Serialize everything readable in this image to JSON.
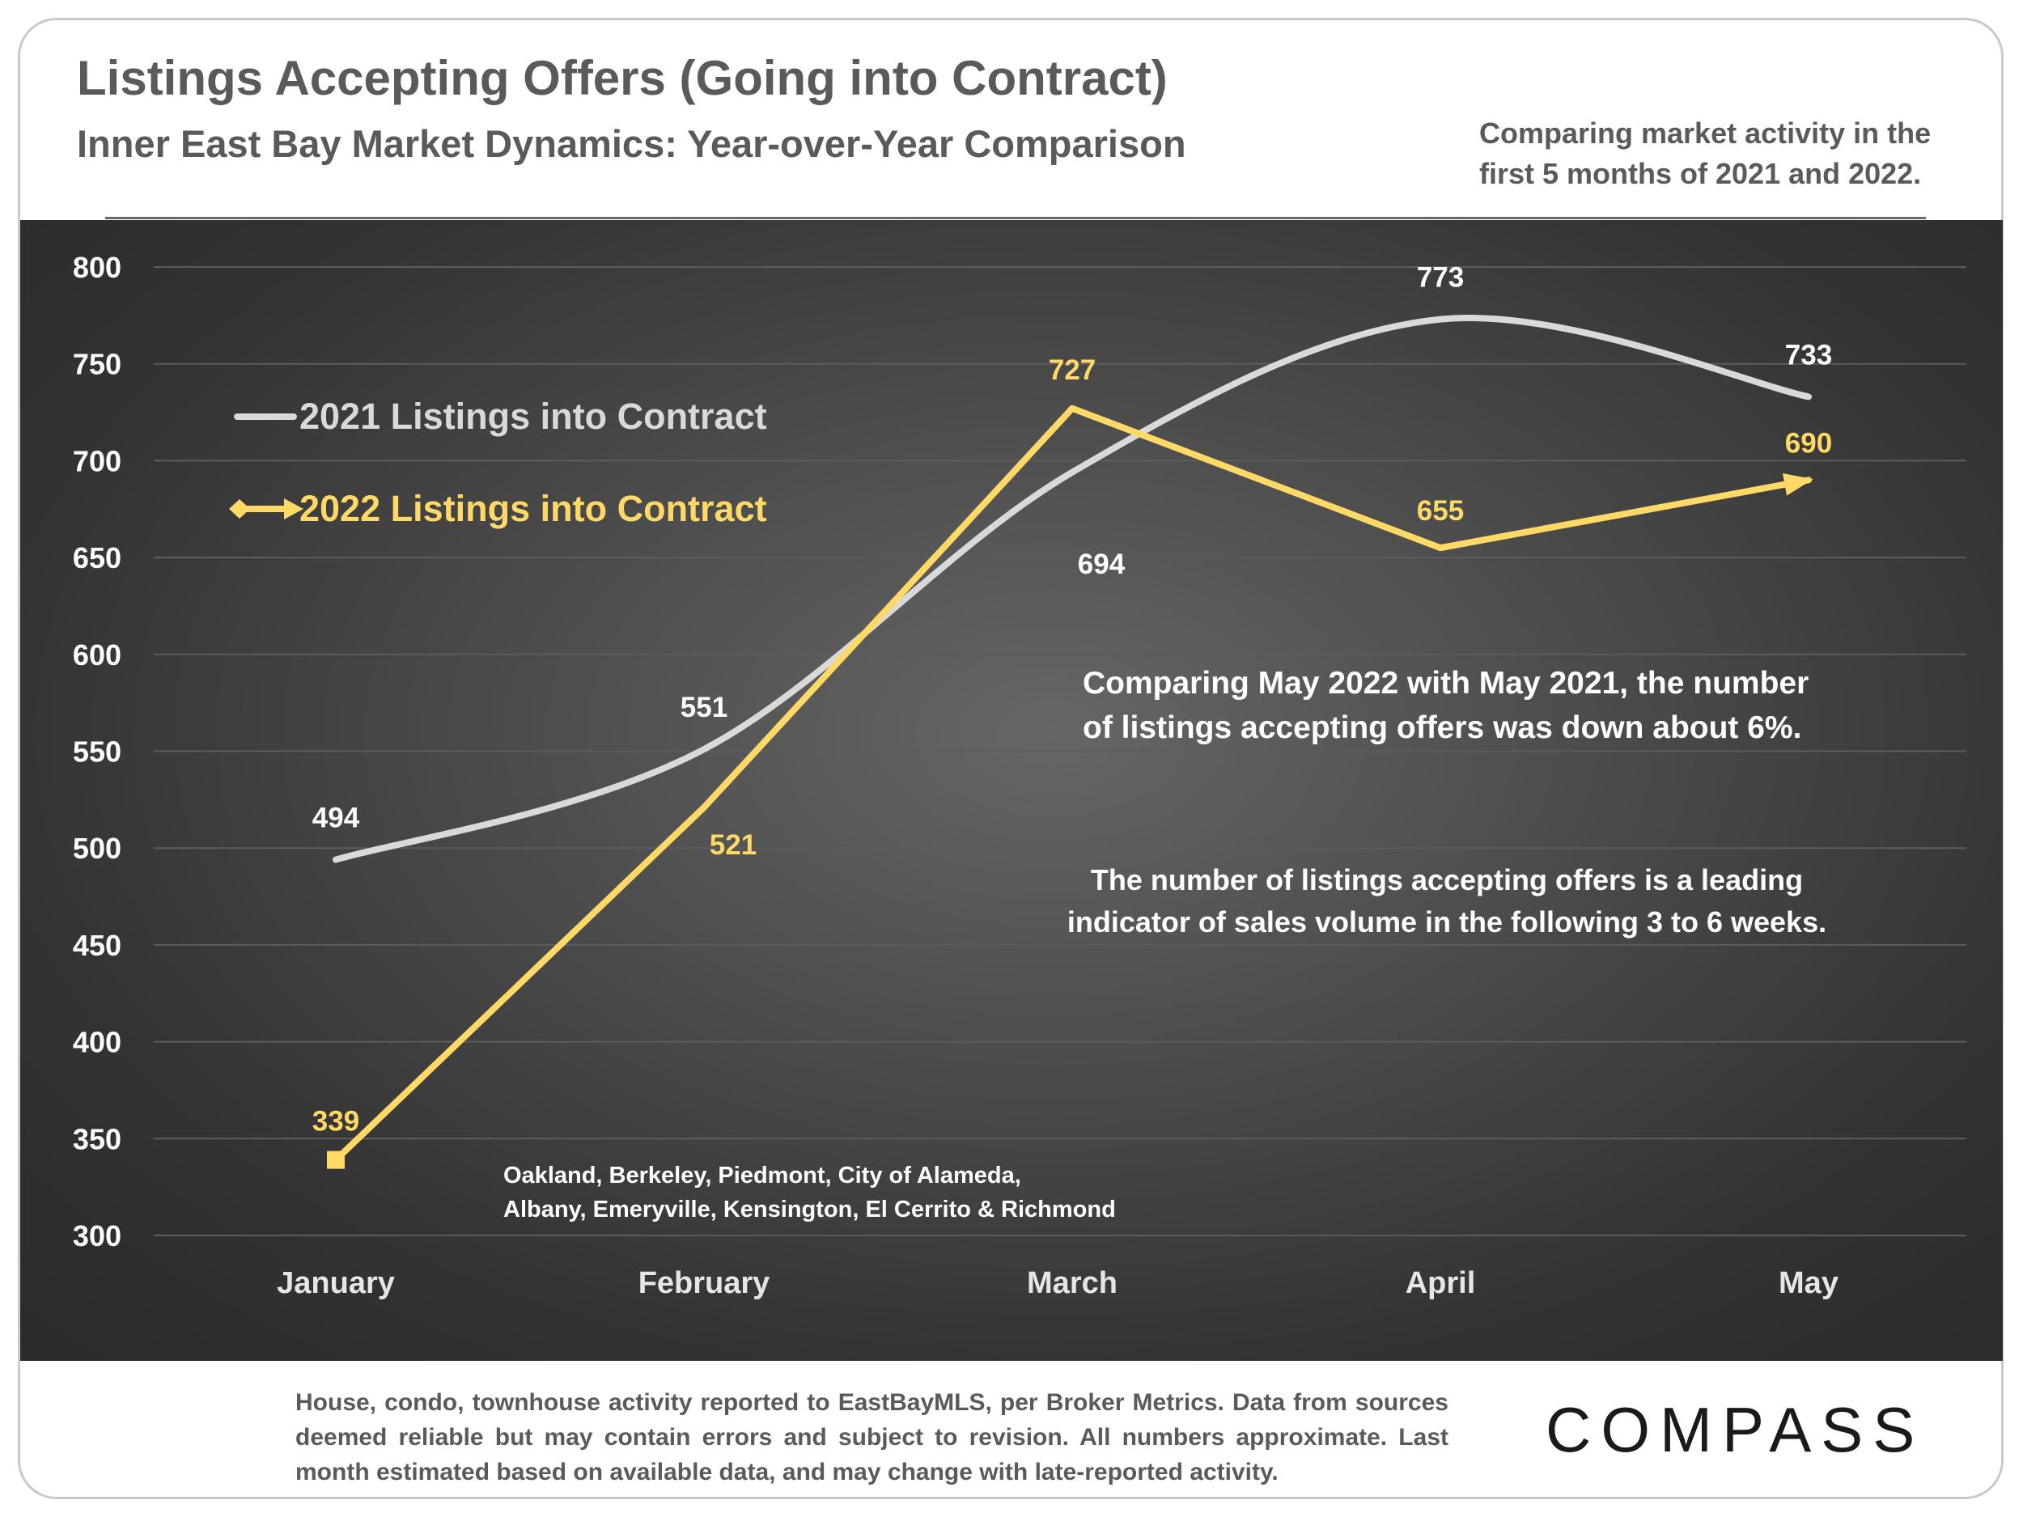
{
  "header": {
    "title": "Listings Accepting Offers (Going into Contract)",
    "subtitle": "Inner East Bay Market Dynamics: Year-over-Year Comparison",
    "note_line1": "Comparing market activity in the",
    "note_line2": "first 5 months of 2021 and 2022."
  },
  "annotations": {
    "comparison_line1": "Comparing May 2022 with May 2021, the number",
    "comparison_line2": "of listings accepting offers was down about 6%.",
    "indicator_line1": "The number of listings accepting offers is a leading",
    "indicator_line2": "indicator of sales volume in the following 3 to 6 weeks.",
    "areas_line1": "Oakland, Berkeley, Piedmont, City of Alameda,",
    "areas_line2": "Albany, Emeryville, Kensington, El Cerrito & Richmond"
  },
  "footer": {
    "disclaimer": "House, condo, townhouse activity reported to EastBayMLS, per Broker Metrics. Data from sources deemed reliable but may contain errors and subject to revision. All numbers approximate. Last month estimated based on available data, and may change with late-reported activity.",
    "logo": "COMPASS"
  },
  "chart_data": {
    "type": "line",
    "categories": [
      "January",
      "February",
      "March",
      "April",
      "May"
    ],
    "ylim": [
      300,
      800
    ],
    "yticks": [
      300,
      350,
      400,
      450,
      500,
      550,
      600,
      650,
      700,
      750,
      800
    ],
    "grid": true,
    "legend_position": "top-left",
    "series": [
      {
        "name": "2021 Listings into Contract",
        "values": [
          494,
          551,
          694,
          773,
          733
        ],
        "color": "#d9d9d9",
        "smooth": true
      },
      {
        "name": "2022 Listings into Contract",
        "values": [
          339,
          521,
          727,
          655,
          690
        ],
        "color": "#ffd966",
        "smooth": false
      }
    ]
  },
  "colors": {
    "panel": "#3a3a3a",
    "gridline": "#5c5c5c",
    "axis_text": "#ffffff",
    "header_text": "#5a5a5a"
  }
}
